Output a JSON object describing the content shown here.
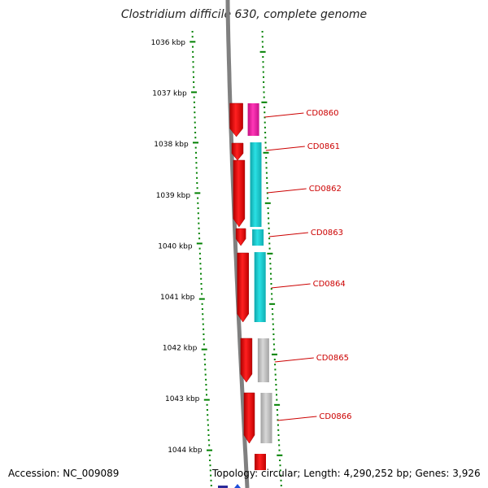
{
  "title": "Clostridium difficile 630, complete genome",
  "footer": {
    "accession": "Accession: NC_009089",
    "topology": "Topology: circular; Length: 4,290,252 bp; Genes: 3,926"
  },
  "axis_labels": [
    "1036 kbp",
    "1037 kbp",
    "1038 kbp",
    "1039 kbp",
    "1040 kbp",
    "1041 kbp",
    "1042 kbp",
    "1043 kbp",
    "1044 kbp"
  ],
  "genes": [
    {
      "label": "CD0860",
      "category_color": "#f01aa0"
    },
    {
      "label": "CD0861",
      "category_color": "#17c8cc"
    },
    {
      "label": "CD0862",
      "category_color": "#17c8cc"
    },
    {
      "label": "CD0863",
      "category_color": "#17c8cc"
    },
    {
      "label": "CD0864",
      "category_color": "#17c8cc"
    },
    {
      "label": "CD0865",
      "category_color": "#bfbfbf"
    },
    {
      "label": "CD0866",
      "category_color": "#bfbfbf"
    }
  ],
  "colors": {
    "gene_fill": "#ff0000",
    "tick": "#008000",
    "backbone": "#808080",
    "label_text": "#cc0000"
  }
}
